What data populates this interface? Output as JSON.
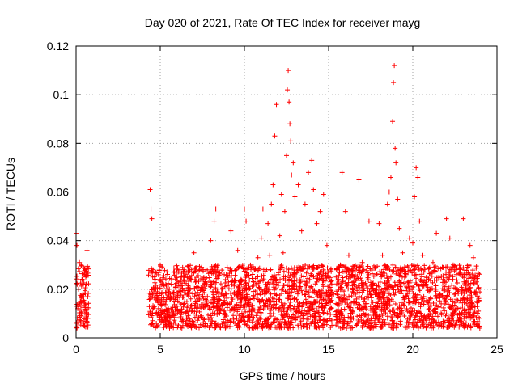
{
  "chart_data": {
    "type": "scatter",
    "title": "Day 020 of 2021, Rate Of TEC Index for receiver mayg",
    "xlabel": "GPS time / hours",
    "ylabel": "ROTI / TECUs",
    "xlim": [
      0,
      25
    ],
    "ylim": [
      0,
      0.12
    ],
    "x_ticks": [
      0,
      5,
      10,
      15,
      20,
      25
    ],
    "y_ticks": [
      0,
      0.02,
      0.04,
      0.06,
      0.08,
      0.1,
      0.12
    ],
    "x_tick_labels": [
      "0",
      "5",
      "10",
      "15",
      "20",
      "25"
    ],
    "y_tick_labels": [
      "0",
      "0.02",
      "0.04",
      "0.06",
      "0.08",
      "0.1",
      "0.12"
    ],
    "grid": true,
    "marker": "plus",
    "color": "#ff0000",
    "series": [
      {
        "points": [
          [
            0.0,
            0.043
          ],
          [
            0.05,
            0.038
          ],
          [
            0.1,
            0.012
          ],
          [
            0.15,
            0.02
          ],
          [
            0.2,
            0.031
          ],
          [
            0.25,
            0.015
          ],
          [
            0.3,
            0.009
          ],
          [
            0.35,
            0.024
          ],
          [
            0.4,
            0.018
          ],
          [
            0.45,
            0.006
          ],
          [
            0.5,
            0.027
          ],
          [
            0.55,
            0.014
          ],
          [
            0.6,
            0.011
          ],
          [
            0.65,
            0.036
          ],
          [
            0.7,
            0.008
          ],
          [
            4.4,
            0.061
          ],
          [
            4.45,
            0.053
          ],
          [
            4.5,
            0.049
          ],
          [
            4.55,
            0.025
          ],
          [
            4.7,
            0.018
          ],
          [
            4.9,
            0.012
          ],
          [
            5.0,
            0.03
          ],
          [
            5.2,
            0.022
          ],
          [
            5.4,
            0.008
          ],
          [
            5.6,
            0.016
          ],
          [
            5.8,
            0.027
          ],
          [
            6.0,
            0.013
          ],
          [
            6.2,
            0.019
          ],
          [
            6.4,
            0.028
          ],
          [
            6.6,
            0.011
          ],
          [
            6.8,
            0.024
          ],
          [
            7.0,
            0.035
          ],
          [
            7.2,
            0.015
          ],
          [
            7.4,
            0.009
          ],
          [
            7.6,
            0.022
          ],
          [
            7.8,
            0.017
          ],
          [
            8.0,
            0.04
          ],
          [
            8.2,
            0.048
          ],
          [
            8.3,
            0.053
          ],
          [
            8.4,
            0.019
          ],
          [
            8.6,
            0.012
          ],
          [
            8.8,
            0.026
          ],
          [
            9.0,
            0.014
          ],
          [
            9.2,
            0.044
          ],
          [
            9.4,
            0.018
          ],
          [
            9.6,
            0.036
          ],
          [
            9.8,
            0.024
          ],
          [
            10.0,
            0.053
          ],
          [
            10.1,
            0.048
          ],
          [
            10.2,
            0.016
          ],
          [
            10.4,
            0.011
          ],
          [
            10.6,
            0.028
          ],
          [
            10.8,
            0.033
          ],
          [
            11.0,
            0.041
          ],
          [
            11.1,
            0.053
          ],
          [
            11.2,
            0.018
          ],
          [
            11.4,
            0.047
          ],
          [
            11.5,
            0.034
          ],
          [
            11.6,
            0.055
          ],
          [
            11.7,
            0.063
          ],
          [
            11.8,
            0.083
          ],
          [
            11.9,
            0.096
          ],
          [
            12.0,
            0.026
          ],
          [
            12.1,
            0.042
          ],
          [
            12.2,
            0.059
          ],
          [
            12.3,
            0.035
          ],
          [
            12.4,
            0.052
          ],
          [
            12.5,
            0.075
          ],
          [
            12.55,
            0.102
          ],
          [
            12.6,
            0.11
          ],
          [
            12.65,
            0.097
          ],
          [
            12.7,
            0.088
          ],
          [
            12.75,
            0.081
          ],
          [
            12.8,
            0.067
          ],
          [
            12.9,
            0.072
          ],
          [
            13.0,
            0.058
          ],
          [
            13.2,
            0.063
          ],
          [
            13.4,
            0.044
          ],
          [
            13.6,
            0.055
          ],
          [
            13.8,
            0.068
          ],
          [
            14.0,
            0.073
          ],
          [
            14.1,
            0.061
          ],
          [
            14.3,
            0.047
          ],
          [
            14.5,
            0.052
          ],
          [
            14.7,
            0.059
          ],
          [
            14.9,
            0.038
          ],
          [
            15.0,
            0.025
          ],
          [
            15.1,
            0.012
          ],
          [
            15.3,
            0.018
          ],
          [
            15.6,
            0.02
          ],
          [
            15.8,
            0.068
          ],
          [
            16.0,
            0.052
          ],
          [
            16.2,
            0.034
          ],
          [
            16.4,
            0.027
          ],
          [
            16.6,
            0.018
          ],
          [
            16.8,
            0.065
          ],
          [
            17.0,
            0.031
          ],
          [
            17.2,
            0.014
          ],
          [
            17.4,
            0.048
          ],
          [
            17.6,
            0.022
          ],
          [
            17.8,
            0.018
          ],
          [
            18.0,
            0.047
          ],
          [
            18.2,
            0.034
          ],
          [
            18.4,
            0.029
          ],
          [
            18.5,
            0.055
          ],
          [
            18.6,
            0.06
          ],
          [
            18.7,
            0.066
          ],
          [
            18.8,
            0.089
          ],
          [
            18.85,
            0.105
          ],
          [
            18.9,
            0.112
          ],
          [
            18.95,
            0.078
          ],
          [
            19.0,
            0.072
          ],
          [
            19.1,
            0.057
          ],
          [
            19.2,
            0.045
          ],
          [
            19.4,
            0.035
          ],
          [
            19.6,
            0.026
          ],
          [
            19.8,
            0.041
          ],
          [
            20.0,
            0.039
          ],
          [
            20.1,
            0.058
          ],
          [
            20.2,
            0.07
          ],
          [
            20.3,
            0.066
          ],
          [
            20.4,
            0.048
          ],
          [
            20.6,
            0.034
          ],
          [
            20.8,
            0.022
          ],
          [
            21.0,
            0.029
          ],
          [
            21.2,
            0.031
          ],
          [
            21.4,
            0.043
          ],
          [
            21.6,
            0.018
          ],
          [
            21.8,
            0.024
          ],
          [
            22.0,
            0.049
          ],
          [
            22.2,
            0.041
          ],
          [
            22.4,
            0.03
          ],
          [
            22.6,
            0.012
          ],
          [
            22.8,
            0.026
          ],
          [
            23.0,
            0.049
          ],
          [
            23.2,
            0.019
          ],
          [
            23.4,
            0.038
          ],
          [
            23.6,
            0.033
          ],
          [
            23.8,
            0.015
          ],
          [
            23.9,
            0.011
          ]
        ]
      }
    ],
    "dense_band": {
      "description": "dense cluster of marks",
      "segments": [
        {
          "x": [
            0.0,
            0.75
          ],
          "y": [
            0.004,
            0.03
          ]
        },
        {
          "x": [
            4.3,
            15.2
          ],
          "y": [
            0.004,
            0.03
          ]
        },
        {
          "x": [
            15.4,
            24.0
          ],
          "y": [
            0.004,
            0.03
          ]
        }
      ]
    }
  }
}
